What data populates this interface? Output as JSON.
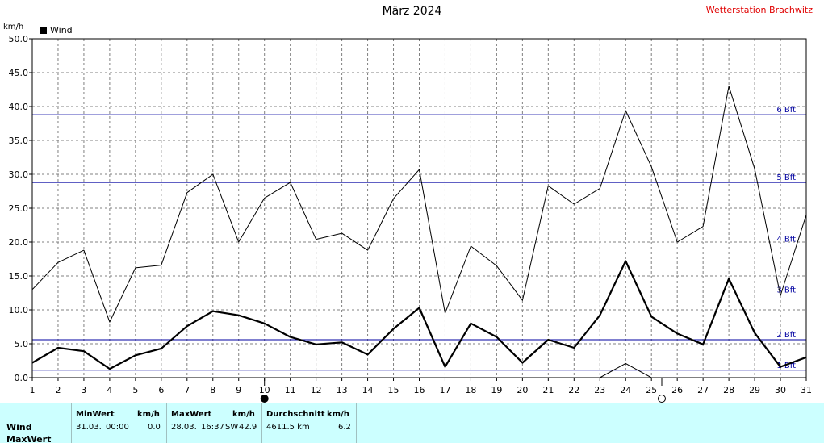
{
  "header": {
    "title": "März 2024",
    "station": "Wetterstation Brachwitz",
    "unit": "km/h",
    "legend": "Wind"
  },
  "chart_data": {
    "type": "line",
    "title": "März 2024",
    "ylabel": "km/h",
    "xlim": [
      1,
      31
    ],
    "ylim": [
      0,
      50
    ],
    "x": [
      1,
      2,
      3,
      4,
      5,
      6,
      7,
      8,
      9,
      10,
      11,
      12,
      13,
      14,
      15,
      16,
      17,
      18,
      19,
      20,
      21,
      22,
      23,
      24,
      25,
      26,
      27,
      28,
      29,
      30,
      31
    ],
    "y_ticks": [
      "0.0",
      "5.0",
      "10.0",
      "15.0",
      "20.0",
      "25.0",
      "30.0",
      "35.0",
      "40.0",
      "45.0",
      "50.0"
    ],
    "x_ticks": [
      "1",
      "2",
      "3",
      "4",
      "5",
      "6",
      "7",
      "8",
      "9",
      "10",
      "11",
      "12",
      "13",
      "14",
      "15",
      "16",
      "17",
      "18",
      "19",
      "20",
      "21",
      "22",
      "23",
      "24",
      "25",
      "26",
      "27",
      "28",
      "29",
      "30",
      "31"
    ],
    "series": [
      {
        "name": "Wind",
        "role": "average",
        "values": [
          2.2,
          4.4,
          3.9,
          1.3,
          3.3,
          4.3,
          7.6,
          9.8,
          9.2,
          8.0,
          6.0,
          4.9,
          5.2,
          3.4,
          7.2,
          10.3,
          1.6,
          8.0,
          6.0,
          2.2,
          5.6,
          4.4,
          9.2,
          17.2,
          9.0,
          6.5,
          4.9,
          14.6,
          6.6,
          1.6,
          3.0
        ]
      },
      {
        "role": "maximum",
        "values": [
          13.0,
          17.0,
          18.8,
          8.2,
          16.2,
          16.6,
          27.3,
          30.0,
          20.0,
          26.5,
          28.8,
          20.4,
          21.3,
          18.8,
          26.4,
          30.7,
          9.5,
          19.4,
          16.5,
          11.4,
          28.3,
          25.6,
          27.9,
          39.4,
          31.1,
          20.0,
          22.3,
          43.0,
          30.8,
          12.1,
          24.0
        ]
      },
      {
        "role": "minimum",
        "values": [
          0,
          0,
          0,
          0,
          0,
          0,
          0,
          0,
          0,
          0,
          0,
          0,
          0,
          0,
          0,
          0,
          0,
          0,
          0,
          0,
          0,
          0,
          0,
          2.1,
          0,
          0,
          0,
          0,
          0,
          0,
          0
        ]
      }
    ],
    "beaufort": [
      {
        "label": "1 Bft",
        "value": 1.1
      },
      {
        "label": "2 Bft",
        "value": 5.6
      },
      {
        "label": "3 Bft",
        "value": 12.2
      },
      {
        "label": "4 Bft",
        "value": 19.7
      },
      {
        "label": "5 Bft",
        "value": 28.8
      },
      {
        "label": "6 Bft",
        "value": 38.8
      }
    ],
    "moon_phases": [
      {
        "day": 10.0,
        "phase": "new"
      },
      {
        "day": 25.4,
        "phase": "full"
      }
    ],
    "grid": true,
    "legend_position": "top-left",
    "colors": {
      "series": "#000000",
      "beaufort": "#0000a0",
      "grid": "#808080",
      "info_bg": "#ccffff",
      "station": "#e00000"
    }
  },
  "info": {
    "rows": [
      "Wind",
      "MaxWert"
    ],
    "min": {
      "header": "MinWert",
      "unit": "km/h",
      "date": "31.03.",
      "time": "00:00",
      "value": "0.0"
    },
    "max": {
      "header": "MaxWert",
      "unit": "km/h",
      "date": "28.03.",
      "time": "16:37",
      "dir": "SW",
      "value": "42.9"
    },
    "avg": {
      "header": "Durchschnitt",
      "unit": "km/h",
      "distance": "4611.5 km",
      "value": "6.2"
    }
  }
}
